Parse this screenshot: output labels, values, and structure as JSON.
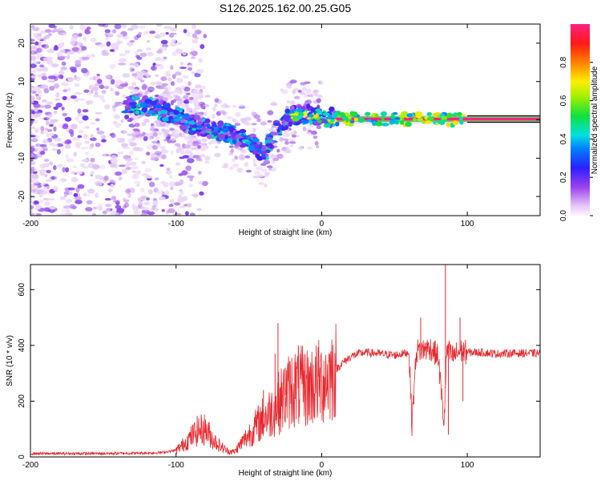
{
  "title": "S126.2025.162.00.25.G05",
  "colors": {
    "snr_line": "#e8282d",
    "rainbow_low": "#f5eaf8",
    "rainbow_purple": "#7b1fe0",
    "rainbow_blue": "#2040ff",
    "rainbow_cyan": "#00e0e0",
    "rainbow_green": "#20e020",
    "rainbow_yellow": "#ffee00",
    "rainbow_red": "#ff2020",
    "rainbow_high": "#ff2080"
  },
  "chart_data": [
    {
      "type": "heatmap",
      "name": "spectrogram",
      "xlabel": "Height of straight line (km)",
      "ylabel": "Frequency (Hz)",
      "xlim": [
        -200,
        150
      ],
      "ylim": [
        -25,
        25
      ],
      "xticks": [
        -200,
        -100,
        0,
        100
      ],
      "xtick_labels": [
        "-200",
        "-100",
        "0",
        "100"
      ],
      "yticks": [
        -20,
        -10,
        0,
        10,
        20
      ],
      "ytick_labels": [
        "-20",
        "-10",
        "0",
        "10",
        "20"
      ],
      "colorbar": {
        "label": "Normalized spectral amplitude",
        "range": [
          0,
          1
        ],
        "ticks": [
          0.0,
          0.2,
          0.4,
          0.6,
          0.8
        ],
        "tick_labels": [
          "0.0",
          "0.2",
          "0.4",
          "0.6",
          "0.8"
        ]
      },
      "ridge": {
        "description": "peak frequency track",
        "x": [
          -130,
          -120,
          -110,
          -100,
          -90,
          -80,
          -70,
          -60,
          -50,
          -40,
          -35,
          -30,
          -25,
          -20,
          -10,
          0,
          10,
          50,
          100,
          150
        ],
        "y": [
          4,
          3.5,
          2.5,
          1,
          -1,
          -2,
          -3,
          -4,
          -5,
          -9,
          -6,
          -2,
          0,
          1,
          1.5,
          1,
          0.3,
          0.2,
          0.1,
          0.1
        ]
      },
      "steady_band": {
        "x_start": 10,
        "x_end": 150,
        "freq": 0.2,
        "amplitude": 1.0
      }
    },
    {
      "type": "line",
      "name": "snr",
      "xlabel": "Height of straight line (km)",
      "ylabel": "SNR (10 * v/v)",
      "xlim": [
        -200,
        150
      ],
      "ylim": [
        0,
        690
      ],
      "xticks": [
        -200,
        -100,
        0,
        100
      ],
      "xtick_labels": [
        "-200",
        "-100",
        "0",
        "100"
      ],
      "yticks": [
        0,
        200,
        400,
        600
      ],
      "ytick_labels": [
        "0",
        "200",
        "400",
        "600"
      ],
      "series": [
        {
          "name": "SNR",
          "x": [
            -200,
            -180,
            -160,
            -140,
            -120,
            -110,
            -100,
            -95,
            -90,
            -85,
            -80,
            -75,
            -70,
            -65,
            -60,
            -55,
            -50,
            -45,
            -40,
            -35,
            -30,
            -25,
            -20,
            -15,
            -10,
            -5,
            0,
            5,
            10,
            15,
            20,
            25,
            30,
            40,
            50,
            55,
            60,
            62,
            65,
            70,
            75,
            80,
            84,
            86,
            88,
            90,
            95,
            100,
            110,
            120,
            130,
            140,
            150
          ],
          "y": [
            12,
            12,
            12,
            13,
            14,
            16,
            24,
            45,
            70,
            95,
            100,
            65,
            40,
            22,
            18,
            50,
            80,
            110,
            140,
            160,
            190,
            220,
            250,
            250,
            250,
            260,
            270,
            290,
            315,
            340,
            360,
            370,
            375,
            370,
            365,
            370,
            375,
            120,
            380,
            385,
            390,
            360,
            120,
            390,
            370,
            360,
            380,
            375,
            375,
            370,
            372,
            372,
            372
          ],
          "spikes": [
            {
              "x": -40,
              "y": 240
            },
            {
              "x": -32,
              "y": 370
            },
            {
              "x": -30,
              "y": 480
            },
            {
              "x": -25,
              "y": 320
            },
            {
              "x": -16,
              "y": 400
            },
            {
              "x": -12,
              "y": 310
            },
            {
              "x": 68,
              "y": 500
            },
            {
              "x": 72,
              "y": 410
            },
            {
              "x": 85,
              "y": 690
            },
            {
              "x": 87,
              "y": 80
            },
            {
              "x": 95,
              "y": 500
            },
            {
              "x": 97,
              "y": 200
            }
          ]
        }
      ]
    }
  ]
}
